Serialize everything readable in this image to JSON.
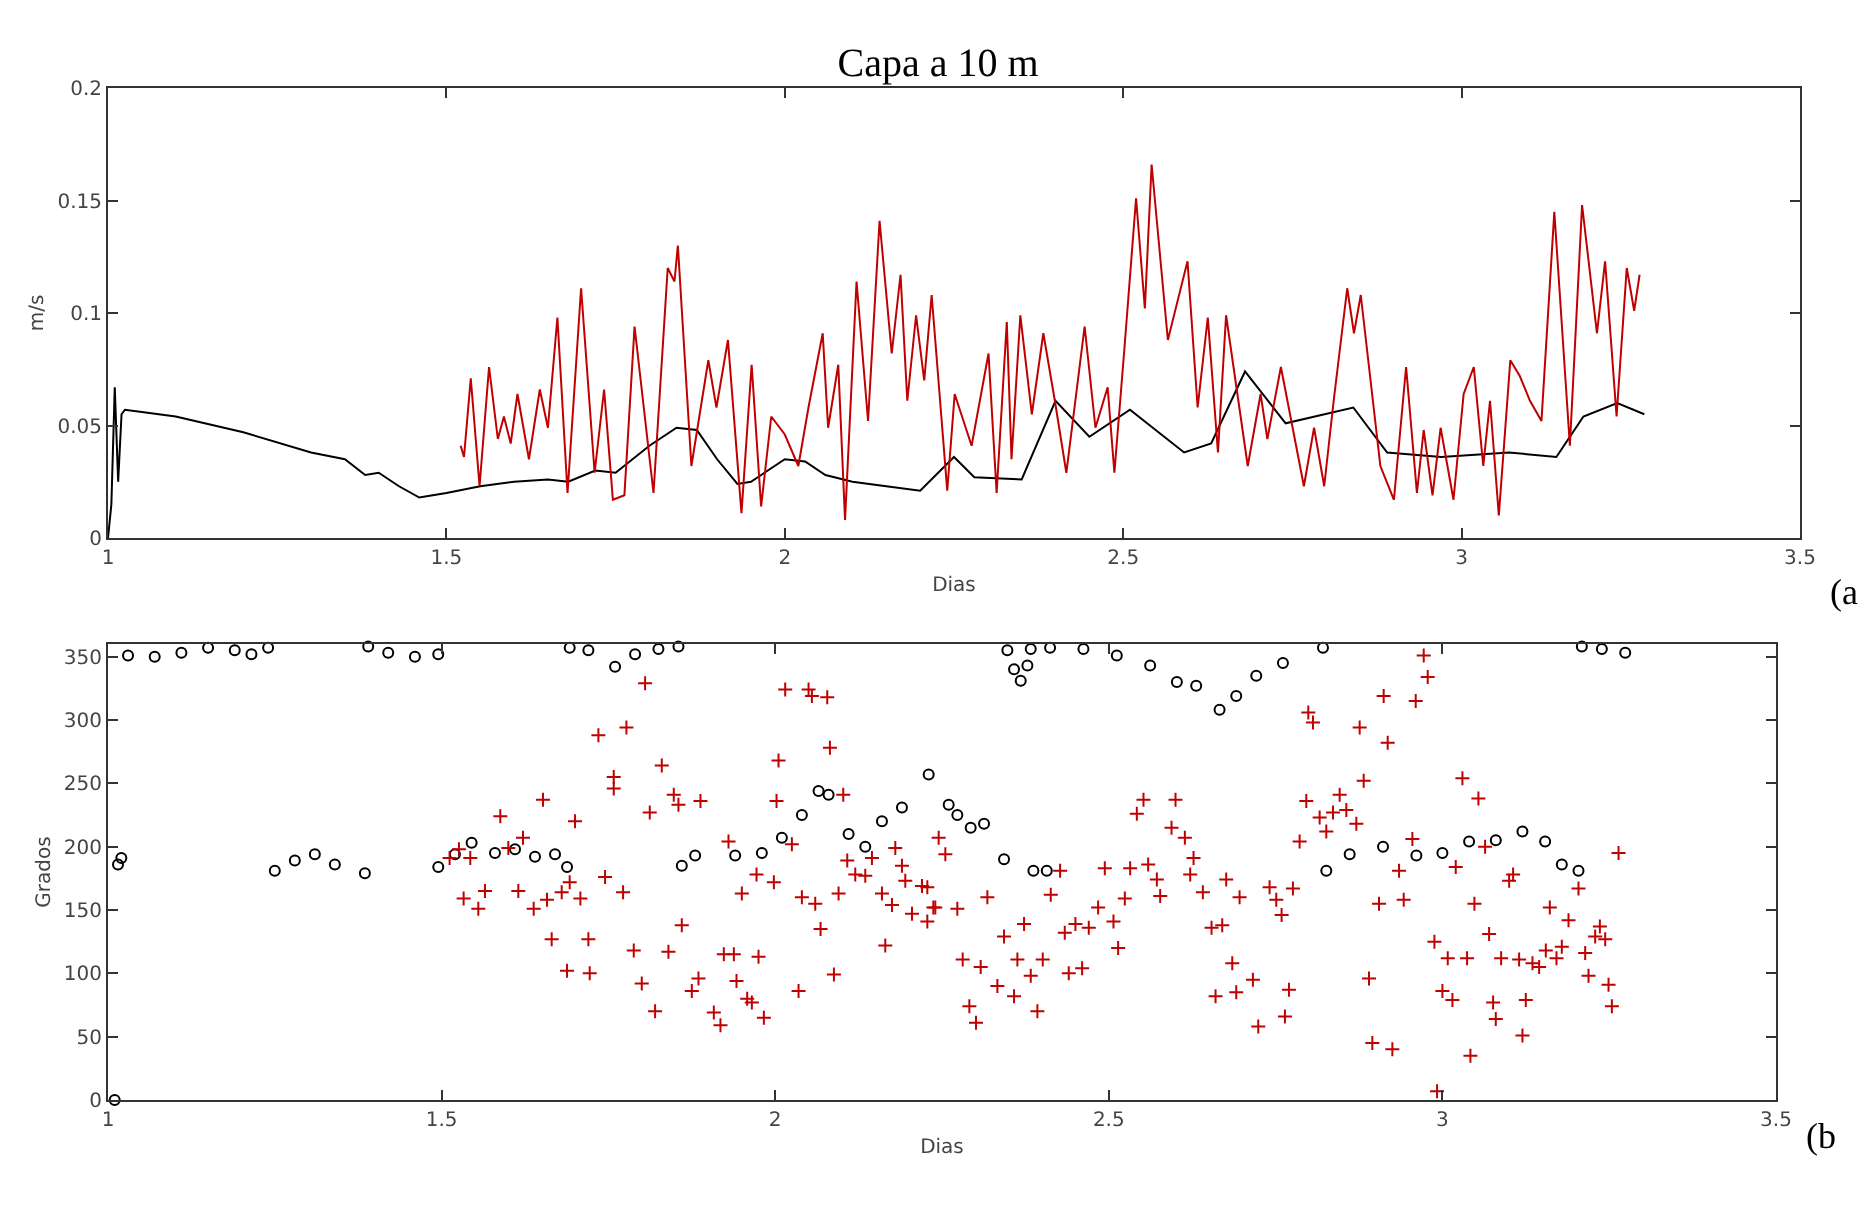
{
  "chart_data": [
    {
      "type": "line",
      "title": "Capa a 10 m",
      "xlabel": "Dias",
      "ylabel": "m/s",
      "annotations": [
        "(a"
      ],
      "xlim": [
        1,
        3.5
      ],
      "xticks": [
        1,
        1.5,
        2,
        2.5,
        3,
        3.5
      ],
      "ylim": [
        0,
        0.2
      ],
      "yticks": [
        0,
        0.05,
        0.1,
        0.15,
        0.2
      ],
      "line_style": "solid",
      "series": [
        {
          "color": "#000000",
          "x": [
            1.0,
            1.005,
            1.01,
            1.015,
            1.02,
            1.025,
            1.05,
            1.1,
            1.2,
            1.3,
            1.35,
            1.38,
            1.4,
            1.43,
            1.46,
            1.5,
            1.55,
            1.6,
            1.65,
            1.68,
            1.72,
            1.75,
            1.8,
            1.84,
            1.87,
            1.9,
            1.93,
            1.95,
            2.0,
            2.03,
            2.06,
            2.1,
            2.15,
            2.2,
            2.25,
            2.28,
            2.35,
            2.4,
            2.45,
            2.51,
            2.59,
            2.63,
            2.68,
            2.74,
            2.84,
            2.89,
            2.97,
            3.07,
            3.14,
            3.18,
            3.23,
            3.27
          ],
          "values": [
            0.0,
            0.015,
            0.067,
            0.025,
            0.055,
            0.057,
            0.056,
            0.054,
            0.047,
            0.038,
            0.035,
            0.028,
            0.029,
            0.023,
            0.018,
            0.02,
            0.023,
            0.025,
            0.026,
            0.025,
            0.03,
            0.029,
            0.041,
            0.049,
            0.048,
            0.035,
            0.024,
            0.025,
            0.035,
            0.034,
            0.028,
            0.025,
            0.023,
            0.021,
            0.036,
            0.027,
            0.026,
            0.061,
            0.045,
            0.057,
            0.038,
            0.042,
            0.074,
            0.051,
            0.058,
            0.038,
            0.036,
            0.038,
            0.036,
            0.054,
            0.06,
            0.055
          ]
        },
        {
          "color": "#c00000",
          "x": [
            1.521,
            1.526,
            1.536,
            1.549,
            1.563,
            1.576,
            1.585,
            1.595,
            1.605,
            1.622,
            1.638,
            1.65,
            1.664,
            1.679,
            1.699,
            1.719,
            1.733,
            1.746,
            1.763,
            1.778,
            1.806,
            1.827,
            1.837,
            1.842,
            1.862,
            1.887,
            1.899,
            1.916,
            1.936,
            1.951,
            1.965,
            1.98,
            2.0,
            2.02,
            2.035,
            2.056,
            2.064,
            2.079,
            2.089,
            2.106,
            2.123,
            2.14,
            2.158,
            2.171,
            2.181,
            2.194,
            2.206,
            2.217,
            2.24,
            2.251,
            2.276,
            2.301,
            2.313,
            2.328,
            2.335,
            2.348,
            2.365,
            2.382,
            2.399,
            2.416,
            2.443,
            2.459,
            2.477,
            2.487,
            2.502,
            2.519,
            2.532,
            2.542,
            2.566,
            2.595,
            2.61,
            2.625,
            2.64,
            2.652,
            2.684,
            2.703,
            2.713,
            2.733,
            2.767,
            2.782,
            2.797,
            2.811,
            2.831,
            2.841,
            2.851,
            2.88,
            2.9,
            2.918,
            2.934,
            2.944,
            2.957,
            2.969,
            2.988,
            3.003,
            3.018,
            3.032,
            3.042,
            3.055,
            3.072,
            3.086,
            3.101,
            3.118,
            3.137,
            3.16,
            3.178,
            3.2,
            3.212,
            3.229,
            3.244,
            3.255,
            3.263
          ],
          "values": [
            0.041,
            0.036,
            0.071,
            0.023,
            0.076,
            0.044,
            0.054,
            0.042,
            0.064,
            0.035,
            0.066,
            0.049,
            0.098,
            0.02,
            0.111,
            0.029,
            0.066,
            0.017,
            0.019,
            0.094,
            0.02,
            0.12,
            0.114,
            0.13,
            0.032,
            0.079,
            0.058,
            0.088,
            0.011,
            0.077,
            0.014,
            0.054,
            0.046,
            0.032,
            0.058,
            0.091,
            0.049,
            0.077,
            0.008,
            0.114,
            0.052,
            0.141,
            0.082,
            0.117,
            0.061,
            0.099,
            0.07,
            0.108,
            0.021,
            0.064,
            0.041,
            0.082,
            0.02,
            0.096,
            0.035,
            0.099,
            0.055,
            0.091,
            0.061,
            0.029,
            0.094,
            0.049,
            0.067,
            0.029,
            0.085,
            0.151,
            0.102,
            0.166,
            0.088,
            0.123,
            0.058,
            0.098,
            0.038,
            0.099,
            0.032,
            0.064,
            0.044,
            0.076,
            0.023,
            0.049,
            0.023,
            0.061,
            0.111,
            0.091,
            0.108,
            0.032,
            0.017,
            0.076,
            0.02,
            0.048,
            0.019,
            0.049,
            0.017,
            0.064,
            0.076,
            0.032,
            0.061,
            0.01,
            0.079,
            0.072,
            0.061,
            0.052,
            0.145,
            0.041,
            0.148,
            0.091,
            0.123,
            0.054,
            0.12,
            0.101,
            0.117
          ]
        }
      ]
    },
    {
      "type": "scatter",
      "xlabel": "Dias",
      "ylabel": "Grados",
      "annotations": [
        "(b"
      ],
      "xlim": [
        1,
        3.5
      ],
      "xticks": [
        1,
        1.5,
        2,
        2.5,
        3,
        3.5
      ],
      "ylim": [
        0,
        360
      ],
      "yticks": [
        0,
        50,
        100,
        150,
        200,
        250,
        300,
        350
      ],
      "series": [
        {
          "color": "#000000",
          "marker": "circle",
          "x": [
            1.01,
            1.015,
            1.02,
            1.03,
            1.07,
            1.11,
            1.15,
            1.19,
            1.215,
            1.24,
            1.25,
            1.28,
            1.31,
            1.34,
            1.385,
            1.39,
            1.42,
            1.46,
            1.495,
            1.495,
            1.52,
            1.545,
            1.58,
            1.61,
            1.64,
            1.67,
            1.688,
            1.692,
            1.72,
            1.76,
            1.79,
            1.825,
            1.855,
            1.86,
            1.88,
            1.94,
            1.98,
            2.01,
            2.04,
            2.065,
            2.08,
            2.11,
            2.135,
            2.16,
            2.19,
            2.23,
            2.26,
            2.273,
            2.293,
            2.313,
            2.343,
            2.348,
            2.358,
            2.368,
            2.378,
            2.383,
            2.387,
            2.407,
            2.412,
            2.462,
            2.512,
            2.562,
            2.602,
            2.631,
            2.666,
            2.691,
            2.721,
            2.761,
            2.821,
            2.826,
            2.861,
            2.911,
            2.961,
            3.0,
            3.04,
            3.08,
            3.12,
            3.154,
            3.179,
            3.204,
            3.209,
            3.239,
            3.274
          ],
          "values": [
            0,
            186,
            191,
            351,
            350,
            353,
            357,
            355,
            352,
            357,
            181,
            189,
            194,
            186,
            179,
            358,
            353,
            350,
            352,
            184,
            194,
            203,
            195,
            198,
            192,
            194,
            184,
            357,
            355,
            342,
            352,
            356,
            358,
            185,
            193,
            193,
            195,
            207,
            225,
            244,
            241,
            210,
            200,
            220,
            231,
            257,
            233,
            225,
            215,
            218,
            190,
            355,
            340,
            331,
            343,
            356,
            181,
            181,
            357,
            356,
            351,
            343,
            330,
            327,
            308,
            319,
            335,
            345,
            357,
            181,
            194,
            200,
            193,
            195,
            204,
            205,
            212,
            204,
            186,
            181,
            358,
            356,
            353
          ]
        },
        {
          "color": "#c00000",
          "marker": "cross",
          "x": [
            1.512,
            1.526,
            1.533,
            1.543,
            1.555,
            1.565,
            1.588,
            1.6,
            1.615,
            1.622,
            1.638,
            1.652,
            1.658,
            1.665,
            1.68,
            1.688,
            1.692,
            1.7,
            1.708,
            1.72,
            1.722,
            1.735,
            1.745,
            1.758,
            1.758,
            1.772,
            1.777,
            1.788,
            1.8,
            1.805,
            1.812,
            1.82,
            1.83,
            1.84,
            1.848,
            1.855,
            1.86,
            1.875,
            1.885,
            1.888,
            1.908,
            1.918,
            1.923,
            1.93,
            1.938,
            1.942,
            1.95,
            1.958,
            1.965,
            1.972,
            1.975,
            1.983,
            1.998,
            2.002,
            2.005,
            2.015,
            2.025,
            2.035,
            2.04,
            2.05,
            2.055,
            2.06,
            2.068,
            2.078,
            2.082,
            2.088,
            2.095,
            2.102,
            2.108,
            2.12,
            2.135,
            2.145,
            2.16,
            2.165,
            2.175,
            2.18,
            2.19,
            2.195,
            2.205,
            2.22,
            2.228,
            2.228,
            2.237,
            2.24,
            2.245,
            2.255,
            2.273,
            2.281,
            2.291,
            2.301,
            2.308,
            2.318,
            2.333,
            2.343,
            2.358,
            2.363,
            2.373,
            2.383,
            2.393,
            2.401,
            2.413,
            2.427,
            2.434,
            2.44,
            2.45,
            2.46,
            2.47,
            2.484,
            2.494,
            2.507,
            2.514,
            2.524,
            2.532,
            2.542,
            2.552,
            2.559,
            2.572,
            2.577,
            2.594,
            2.6,
            2.614,
            2.622,
            2.627,
            2.641,
            2.654,
            2.66,
            2.67,
            2.676,
            2.685,
            2.691,
            2.696,
            2.716,
            2.724,
            2.741,
            2.751,
            2.759,
            2.764,
            2.77,
            2.776,
            2.786,
            2.796,
            2.799,
            2.806,
            2.816,
            2.826,
            2.836,
            2.846,
            2.856,
            2.871,
            2.876,
            2.882,
            2.89,
            2.895,
            2.905,
            2.912,
            2.918,
            2.925,
            2.935,
            2.942,
            2.955,
            2.96,
            2.972,
            2.978,
            2.988,
            2.992,
            3.0,
            3.008,
            3.015,
            3.02,
            3.03,
            3.037,
            3.042,
            3.048,
            3.054,
            3.064,
            3.07,
            3.076,
            3.08,
            3.088,
            3.1,
            3.106,
            3.115,
            3.12,
            3.125,
            3.135,
            3.145,
            3.155,
            3.161,
            3.171,
            3.179,
            3.189,
            3.204,
            3.214,
            3.219,
            3.229,
            3.236,
            3.244,
            3.249,
            3.254,
            3.264
          ],
          "values": [
            191,
            198,
            159,
            191,
            151,
            165,
            224,
            199,
            165,
            207,
            151,
            237,
            158,
            127,
            164,
            102,
            172,
            220,
            159,
            127,
            100,
            288,
            176,
            255,
            246,
            164,
            294,
            118,
            92,
            329,
            227,
            70,
            264,
            117,
            241,
            233,
            138,
            86,
            96,
            236,
            69,
            59,
            115,
            204,
            115,
            94,
            163,
            80,
            77,
            178,
            113,
            65,
            172,
            236,
            268,
            324,
            202,
            86,
            160,
            324,
            319,
            155,
            135,
            318,
            278,
            99,
            163,
            241,
            189,
            178,
            177,
            191,
            163,
            122,
            154,
            199,
            185,
            173,
            147,
            169,
            141,
            168,
            152,
            152,
            207,
            194,
            151,
            111,
            74,
            61,
            105,
            160,
            90,
            129,
            82,
            111,
            139,
            98,
            70,
            111,
            162,
            181,
            132,
            100,
            139,
            104,
            136,
            152,
            183,
            141,
            120,
            159,
            183,
            226,
            237,
            186,
            174,
            161,
            215,
            237,
            207,
            178,
            191,
            164,
            136,
            82,
            138,
            174,
            108,
            85,
            160,
            95,
            58,
            168,
            158,
            146,
            66,
            87,
            167,
            204,
            236,
            306,
            298,
            223,
            212,
            227,
            241,
            229,
            218,
            294,
            252,
            96,
            45,
            155,
            319,
            282,
            40,
            181,
            158,
            206,
            315,
            351,
            334,
            125,
            7,
            86,
            112,
            79,
            184,
            254,
            112,
            35,
            155,
            238,
            200,
            131,
            77,
            64,
            112,
            173,
            178,
            111,
            51,
            79,
            108,
            105,
            118,
            152,
            112,
            121,
            142,
            167,
            116,
            98,
            129,
            137,
            127,
            91,
            74,
            195
          ]
        }
      ]
    }
  ]
}
